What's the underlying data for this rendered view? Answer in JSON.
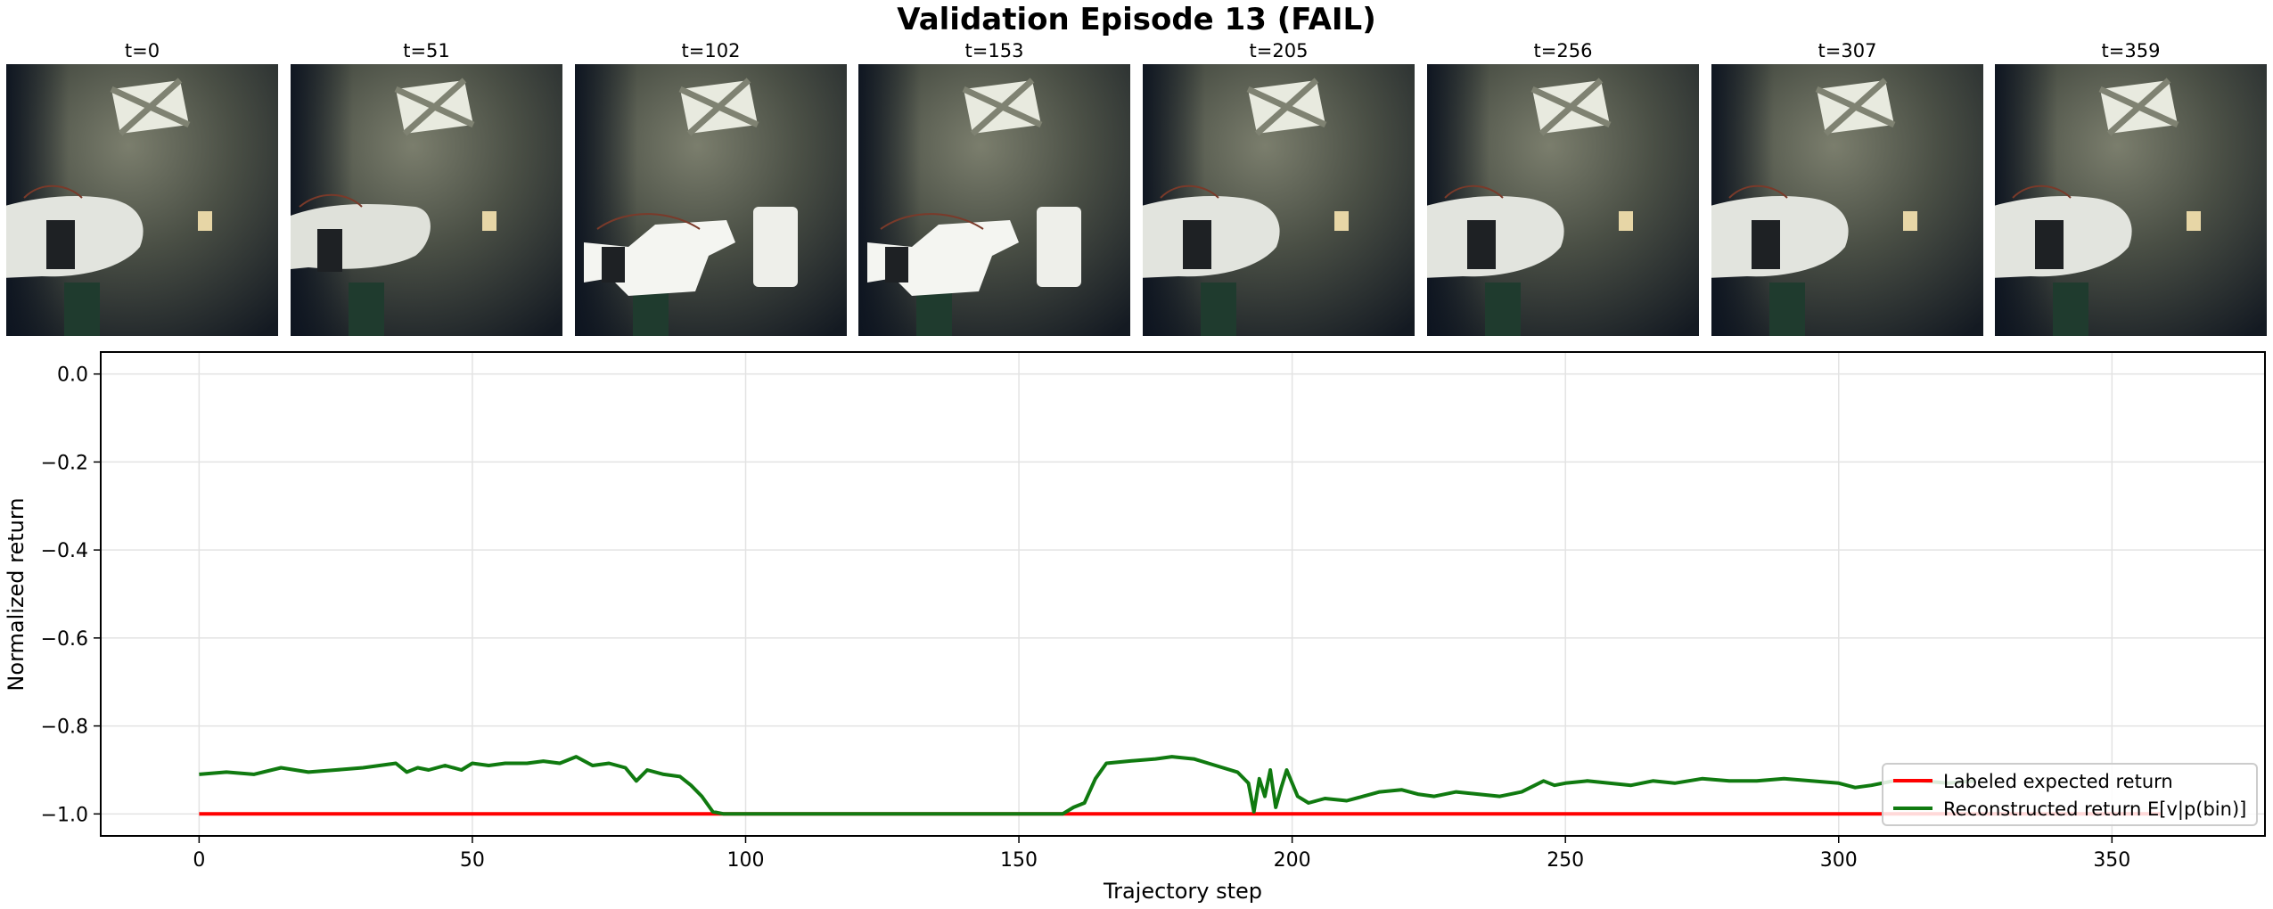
{
  "figure": {
    "title": "Validation Episode 13 (FAIL)"
  },
  "frames": [
    {
      "label": "t=0"
    },
    {
      "label": "t=51"
    },
    {
      "label": "t=102"
    },
    {
      "label": "t=153"
    },
    {
      "label": "t=205"
    },
    {
      "label": "t=256"
    },
    {
      "label": "t=307"
    },
    {
      "label": "t=359"
    }
  ],
  "chart_data": {
    "type": "line",
    "title": "",
    "xlabel": "Trajectory step",
    "ylabel": "Normalized return",
    "xlim": [
      -18,
      378
    ],
    "ylim": [
      -1.05,
      0.05
    ],
    "xticks": [
      0,
      50,
      100,
      150,
      200,
      250,
      300,
      350
    ],
    "yticks": [
      0.0,
      -0.2,
      -0.4,
      -0.6,
      -0.8,
      -1.0
    ],
    "xtick_labels": [
      "0",
      "50",
      "100",
      "150",
      "200",
      "250",
      "300",
      "350"
    ],
    "ytick_labels": [
      "0.0",
      "−0.2",
      "−0.4",
      "−0.6",
      "−0.8",
      "−1.0"
    ],
    "grid": true,
    "legend_position": "lower-right",
    "series": [
      {
        "name": "Labeled expected return",
        "color": "#ff0000",
        "x": [
          0,
          359
        ],
        "y": [
          -1.0,
          -1.0
        ]
      },
      {
        "name": "Reconstructed return E[v|p(bin)]",
        "color": "#107a10",
        "x": [
          0,
          5,
          10,
          15,
          20,
          25,
          30,
          33,
          36,
          38,
          40,
          42,
          45,
          48,
          50,
          53,
          56,
          60,
          63,
          66,
          69,
          72,
          75,
          78,
          80,
          82,
          85,
          88,
          90,
          92,
          94,
          96,
          100,
          110,
          120,
          130,
          140,
          150,
          158,
          160,
          162,
          164,
          166,
          170,
          175,
          178,
          182,
          186,
          190,
          192,
          193,
          194,
          195,
          196,
          197,
          198,
          199,
          201,
          203,
          206,
          210,
          213,
          216,
          220,
          223,
          226,
          230,
          234,
          238,
          242,
          246,
          248,
          250,
          254,
          258,
          262,
          266,
          270,
          275,
          280,
          285,
          290,
          295,
          300,
          303,
          306,
          310,
          315,
          320,
          325
        ],
        "y": [
          -0.91,
          -0.905,
          -0.91,
          -0.895,
          -0.905,
          -0.9,
          -0.895,
          -0.89,
          -0.885,
          -0.905,
          -0.895,
          -0.9,
          -0.89,
          -0.9,
          -0.885,
          -0.89,
          -0.885,
          -0.885,
          -0.88,
          -0.885,
          -0.87,
          -0.89,
          -0.885,
          -0.895,
          -0.925,
          -0.9,
          -0.91,
          -0.915,
          -0.935,
          -0.96,
          -0.995,
          -1.0,
          -1.0,
          -1.0,
          -1.0,
          -1.0,
          -1.0,
          -1.0,
          -1.0,
          -0.985,
          -0.975,
          -0.92,
          -0.885,
          -0.88,
          -0.875,
          -0.87,
          -0.875,
          -0.89,
          -0.905,
          -0.93,
          -0.995,
          -0.92,
          -0.96,
          -0.9,
          -0.985,
          -0.94,
          -0.9,
          -0.96,
          -0.975,
          -0.965,
          -0.97,
          -0.96,
          -0.95,
          -0.945,
          -0.955,
          -0.96,
          -0.95,
          -0.955,
          -0.96,
          -0.95,
          -0.925,
          -0.935,
          -0.93,
          -0.925,
          -0.93,
          -0.935,
          -0.925,
          -0.93,
          -0.92,
          -0.925,
          -0.925,
          -0.92,
          -0.925,
          -0.93,
          -0.94,
          -0.935,
          -0.925,
          -0.925,
          -0.93,
          -0.925
        ]
      }
    ]
  }
}
